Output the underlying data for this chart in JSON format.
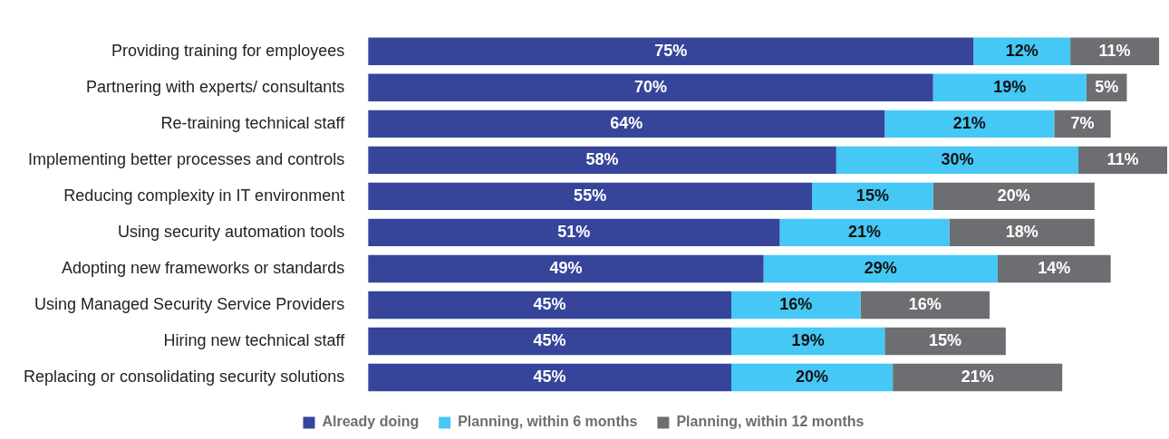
{
  "chart_data": {
    "type": "bar",
    "orientation": "horizontal",
    "stacked": true,
    "legend": "bottom",
    "tick_labels": "y",
    "xlim": [
      0,
      99
    ],
    "categories": [
      "Providing training for employees",
      "Partnering with experts/ consultants",
      "Re-training technical staff",
      "Implementing better processes and controls",
      "Reducing complexity in IT environment",
      "Using security automation tools",
      "Adopting new frameworks or standards",
      "Using Managed Security Service Providers",
      "Hiring new technical staff",
      "Replacing or consolidating security solutions"
    ],
    "series": [
      {
        "name": "Already doing",
        "color": "#36459a",
        "values": [
          75,
          70,
          64,
          58,
          55,
          51,
          49,
          45,
          45,
          45
        ],
        "value_labels": [
          "75%",
          "70%",
          "64%",
          "58%",
          "55%",
          "51%",
          "49%",
          "45%",
          "45%",
          "45%"
        ]
      },
      {
        "name": "Planning, within 6 months",
        "color": "#45c8f5",
        "values": [
          12,
          19,
          21,
          30,
          15,
          21,
          29,
          16,
          19,
          20
        ],
        "value_labels": [
          "12%",
          "19%",
          "21%",
          "30%",
          "15%",
          "21%",
          "29%",
          "16%",
          "19%",
          "20%"
        ]
      },
      {
        "name": "Planning, within 12 months",
        "color": "#6d6e71",
        "values": [
          11,
          5,
          7,
          11,
          20,
          18,
          14,
          16,
          15,
          21
        ],
        "value_labels": [
          "11%",
          "5%",
          "7%",
          "11%",
          "20%",
          "18%",
          "14%",
          "16%",
          "15%",
          "21%"
        ]
      }
    ]
  }
}
